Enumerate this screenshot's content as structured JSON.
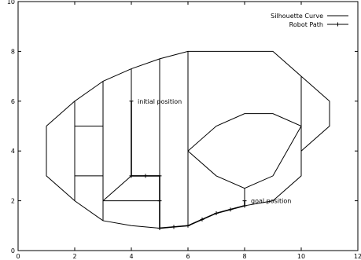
{
  "chart_data": {
    "type": "line",
    "xlim": [
      0,
      12
    ],
    "ylim": [
      0,
      10
    ],
    "x_ticks": [
      "0",
      "2",
      "4",
      "6",
      "8",
      "10",
      "12"
    ],
    "y_ticks": [
      "0",
      "2",
      "4",
      "6",
      "8",
      "10"
    ],
    "grid": false,
    "legend_position": "top-right",
    "series": [
      {
        "name": "Silhouette Curve",
        "style": "line",
        "color": "#000000",
        "polylines": [
          [
            [
              1,
              5
            ],
            [
              2,
              6
            ],
            [
              3,
              6.8
            ],
            [
              4,
              7.3
            ],
            [
              5,
              7.7
            ],
            [
              6,
              8
            ],
            [
              9,
              8
            ],
            [
              10,
              7
            ],
            [
              11,
              6
            ],
            [
              11,
              5
            ],
            [
              10,
              4
            ],
            [
              10,
              3
            ],
            [
              9,
              2
            ],
            [
              8,
              1.8
            ],
            [
              7,
              1.5
            ],
            [
              6,
              1
            ],
            [
              5,
              0.9
            ],
            [
              4,
              1
            ],
            [
              3,
              1.2
            ],
            [
              2,
              2
            ],
            [
              1,
              3
            ],
            [
              1,
              5
            ]
          ],
          [
            [
              2,
              2
            ],
            [
              2,
              6
            ]
          ],
          [
            [
              2,
              5
            ],
            [
              3,
              5
            ]
          ],
          [
            [
              2,
              3
            ],
            [
              3,
              3
            ]
          ],
          [
            [
              3,
              1.2
            ],
            [
              3,
              6.8
            ]
          ],
          [
            [
              4,
              3
            ],
            [
              4,
              7.3
            ]
          ],
          [
            [
              5,
              0.9
            ],
            [
              5,
              7.7
            ]
          ],
          [
            [
              6,
              1
            ],
            [
              6,
              8
            ]
          ],
          [
            [
              10,
              4
            ],
            [
              10,
              7
            ]
          ],
          [
            [
              4,
              3
            ],
            [
              5,
              3
            ]
          ],
          [
            [
              3,
              2
            ],
            [
              4,
              3
            ]
          ],
          [
            [
              3,
              2
            ],
            [
              5,
              2
            ]
          ],
          [
            [
              6,
              4
            ],
            [
              7,
              5
            ],
            [
              8,
              5.5
            ],
            [
              9,
              5.5
            ],
            [
              10,
              5
            ],
            [
              9,
              3
            ],
            [
              8,
              2.5
            ],
            [
              7,
              3
            ],
            [
              6,
              4
            ]
          ],
          [
            [
              8,
              1.8
            ],
            [
              8,
              2.5
            ]
          ]
        ]
      },
      {
        "name": "Robot Path",
        "style": "line-points",
        "color": "#000000",
        "points": [
          [
            4,
            6
          ],
          [
            4,
            3
          ],
          [
            4.5,
            3
          ],
          [
            5,
            3
          ],
          [
            5,
            2
          ],
          [
            5,
            0.9
          ],
          [
            5.5,
            0.95
          ],
          [
            6,
            1
          ],
          [
            6.5,
            1.25
          ],
          [
            7,
            1.5
          ],
          [
            7.5,
            1.65
          ],
          [
            8,
            1.8
          ],
          [
            8,
            2
          ]
        ]
      }
    ],
    "annotations": [
      {
        "text": "initial position",
        "x": 4,
        "y": 6
      },
      {
        "text": "goal position",
        "x": 8,
        "y": 2
      }
    ]
  }
}
